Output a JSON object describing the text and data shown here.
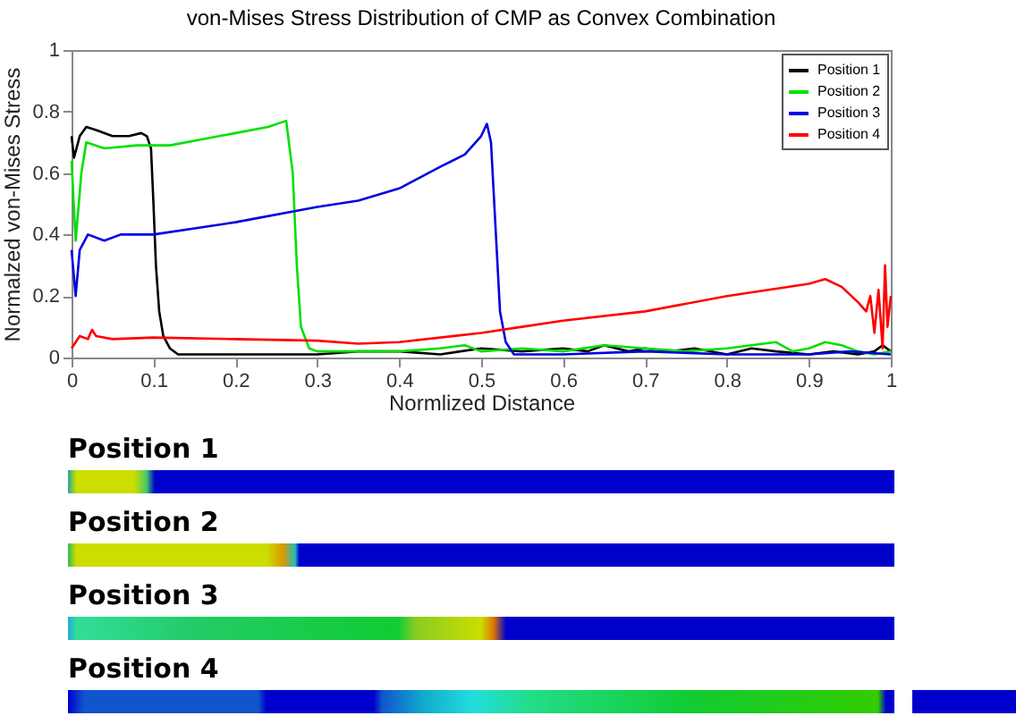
{
  "chart_data": {
    "type": "line",
    "title": "von-Mises Stress Distribution of CMP as Convex Combination",
    "xlabel": "Normlized Distance",
    "ylabel": "Normalzed von-Mises Stress",
    "xlim": [
      0,
      1
    ],
    "ylim": [
      0,
      1
    ],
    "xticks": [
      0,
      0.1,
      0.2,
      0.3,
      0.4,
      0.5,
      0.6,
      0.7,
      0.8,
      0.9,
      1
    ],
    "yticks": [
      0,
      0.2,
      0.4,
      0.6,
      0.8,
      1
    ],
    "grid": false,
    "legend": "top right",
    "series": [
      {
        "name": "Position 1",
        "color": "#000000",
        "x": [
          0,
          0.003,
          0.01,
          0.018,
          0.03,
          0.05,
          0.07,
          0.085,
          0.092,
          0.097,
          0.1,
          0.103,
          0.107,
          0.112,
          0.12,
          0.13,
          0.2,
          0.3,
          0.35,
          0.4,
          0.45,
          0.5,
          0.55,
          0.6,
          0.63,
          0.65,
          0.68,
          0.7,
          0.73,
          0.76,
          0.8,
          0.83,
          0.86,
          0.9,
          0.93,
          0.96,
          0.98,
          0.99,
          1
        ],
        "values": [
          0.72,
          0.65,
          0.72,
          0.75,
          0.74,
          0.72,
          0.72,
          0.73,
          0.72,
          0.68,
          0.5,
          0.3,
          0.15,
          0.07,
          0.03,
          0.01,
          0.01,
          0.01,
          0.02,
          0.02,
          0.01,
          0.03,
          0.02,
          0.03,
          0.02,
          0.04,
          0.02,
          0.03,
          0.02,
          0.03,
          0.01,
          0.03,
          0.02,
          0.01,
          0.02,
          0.01,
          0.02,
          0.04,
          0.02
        ]
      },
      {
        "name": "Position 2",
        "color": "#00e000",
        "x": [
          0,
          0.005,
          0.012,
          0.018,
          0.04,
          0.08,
          0.12,
          0.16,
          0.2,
          0.24,
          0.262,
          0.27,
          0.275,
          0.28,
          0.29,
          0.3,
          0.35,
          0.4,
          0.45,
          0.48,
          0.5,
          0.55,
          0.6,
          0.65,
          0.7,
          0.75,
          0.8,
          0.86,
          0.88,
          0.9,
          0.92,
          0.94,
          0.96,
          0.98,
          1
        ],
        "values": [
          0.64,
          0.38,
          0.6,
          0.7,
          0.68,
          0.69,
          0.69,
          0.71,
          0.73,
          0.75,
          0.77,
          0.6,
          0.3,
          0.1,
          0.03,
          0.02,
          0.02,
          0.02,
          0.03,
          0.04,
          0.02,
          0.03,
          0.02,
          0.04,
          0.03,
          0.02,
          0.03,
          0.05,
          0.02,
          0.03,
          0.05,
          0.04,
          0.02,
          0.01,
          0.02
        ]
      },
      {
        "name": "Position 3",
        "color": "#0000e0",
        "x": [
          0,
          0.005,
          0.01,
          0.02,
          0.04,
          0.06,
          0.1,
          0.2,
          0.3,
          0.35,
          0.4,
          0.45,
          0.48,
          0.5,
          0.507,
          0.512,
          0.518,
          0.523,
          0.53,
          0.54,
          0.6,
          0.7,
          0.8,
          0.9,
          0.95,
          1
        ],
        "values": [
          0.35,
          0.2,
          0.35,
          0.4,
          0.38,
          0.4,
          0.4,
          0.44,
          0.49,
          0.51,
          0.55,
          0.62,
          0.66,
          0.72,
          0.76,
          0.7,
          0.4,
          0.15,
          0.05,
          0.01,
          0.01,
          0.02,
          0.01,
          0.01,
          0.02,
          0.01
        ]
      },
      {
        "name": "Position 4",
        "color": "#ff0000",
        "x": [
          0,
          0.01,
          0.02,
          0.025,
          0.03,
          0.05,
          0.1,
          0.2,
          0.3,
          0.35,
          0.4,
          0.5,
          0.55,
          0.6,
          0.7,
          0.8,
          0.9,
          0.92,
          0.94,
          0.96,
          0.97,
          0.975,
          0.98,
          0.985,
          0.99,
          0.993,
          0.996,
          1
        ],
        "values": [
          0.03,
          0.07,
          0.06,
          0.09,
          0.07,
          0.06,
          0.065,
          0.06,
          0.055,
          0.045,
          0.05,
          0.08,
          0.1,
          0.12,
          0.15,
          0.2,
          0.24,
          0.255,
          0.23,
          0.18,
          0.15,
          0.2,
          0.08,
          0.22,
          0.03,
          0.3,
          0.1,
          0.2
        ]
      }
    ],
    "annotations": [
      "Position 1",
      "Position 2",
      "Position 3",
      "Position 4"
    ]
  }
}
